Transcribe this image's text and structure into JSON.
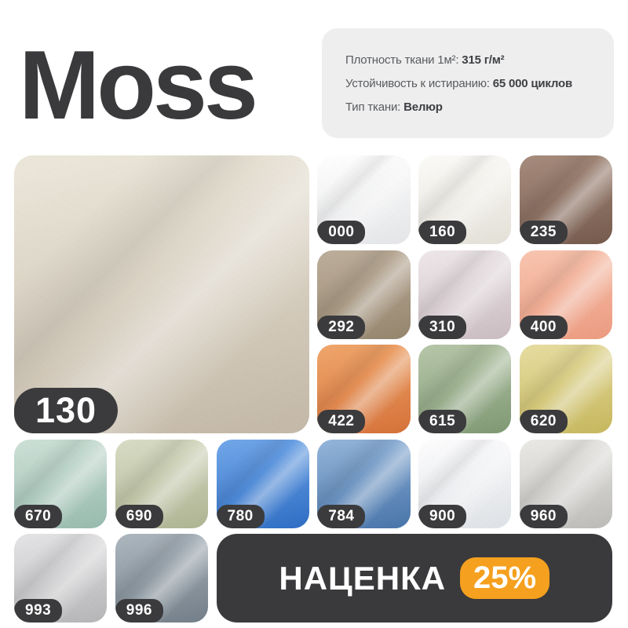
{
  "title": "Moss",
  "specs": [
    {
      "label": "Плотность ткани 1м²:",
      "value": "315 г/м²"
    },
    {
      "label": "Устойчивость к истиранию:",
      "value": "65 000 циклов"
    },
    {
      "label": "Тип ткани:",
      "value": "Велюр"
    }
  ],
  "featured": {
    "code": "130",
    "color_dark": "#c6bbaa",
    "color_light": "#ece7da"
  },
  "swatches": [
    {
      "code": "000",
      "color_dark": "#e7e8ea",
      "color_light": "#ffffff"
    },
    {
      "code": "160",
      "color_dark": "#e6e3da",
      "color_light": "#fcfbf8"
    },
    {
      "code": "235",
      "color_dark": "#775c4e",
      "color_light": "#a58a7b"
    },
    {
      "code": "292",
      "color_dark": "#97876f",
      "color_light": "#bcad9a"
    },
    {
      "code": "310",
      "color_dark": "#cdbfc4",
      "color_light": "#eee7e9"
    },
    {
      "code": "400",
      "color_dark": "#ee9d82",
      "color_light": "#f9c4ae"
    },
    {
      "code": "422",
      "color_dark": "#d8743b",
      "color_light": "#f0a468"
    },
    {
      "code": "615",
      "color_dark": "#829b76",
      "color_light": "#b5c6a7"
    },
    {
      "code": "620",
      "color_dark": "#c9ba60",
      "color_light": "#e6dc9e"
    },
    {
      "code": "670",
      "color_dark": "#9abdb0",
      "color_light": "#cce0d6"
    },
    {
      "code": "690",
      "color_dark": "#b0b795",
      "color_light": "#d8dbc3"
    },
    {
      "code": "780",
      "color_dark": "#3070c7",
      "color_light": "#6ea5e9"
    },
    {
      "code": "784",
      "color_dark": "#4a77ac",
      "color_light": "#91b3d9"
    },
    {
      "code": "900",
      "color_dark": "#e1e4e8",
      "color_light": "#fdfdfe"
    },
    {
      "code": "960",
      "color_dark": "#bfbebb",
      "color_light": "#eae9e6"
    },
    {
      "code": "993",
      "color_dark": "#b8b8ba",
      "color_light": "#e4e4e6"
    },
    {
      "code": "996",
      "color_dark": "#75818b",
      "color_light": "#abb5bd"
    }
  ],
  "banner": {
    "label": "НАЦЕНКА",
    "percent": "25%",
    "background": "#3a3a3c",
    "badge_color": "#f5a01e"
  },
  "theme": {
    "page_background": "#ffffff",
    "title_color": "#3a3a3c",
    "card_background": "#eeeeef",
    "badge_background": "#3b3b3d",
    "badge_text": "#ffffff"
  }
}
